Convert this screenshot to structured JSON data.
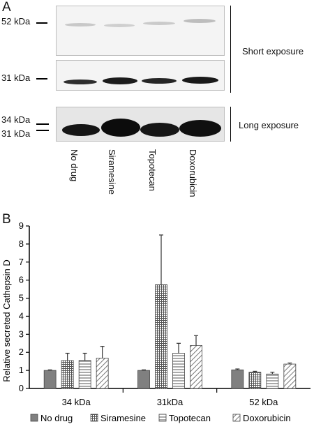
{
  "panel_a": {
    "letter": "A",
    "marker_52": "52 kDa",
    "marker_31": "31 kDa",
    "marker_34_long": "34 kDa",
    "marker_31_long": "31 kDa",
    "short_exposure": "Short exposure",
    "long_exposure": "Long exposure",
    "lanes": [
      "No drug",
      "Siramesine",
      "Topotecan",
      "Doxorubicin"
    ]
  },
  "panel_b": {
    "letter": "B"
  },
  "chart_data": {
    "type": "bar",
    "title": "",
    "xlabel": "",
    "ylabel": "Relative secreted Cathepsin D",
    "ylim": [
      0,
      9
    ],
    "yticks": [
      0,
      1,
      2,
      3,
      4,
      5,
      6,
      7,
      8,
      9
    ],
    "categories": [
      "34 kDa",
      "31kDa",
      "52 kDa"
    ],
    "legend_position": "bottom",
    "series": [
      {
        "name": "No drug",
        "values": [
          1.0,
          1.0,
          1.03
        ],
        "errors": [
          0.03,
          0.03,
          0.05
        ],
        "pattern": "solid",
        "color": "#808080"
      },
      {
        "name": "Siramesine",
        "values": [
          1.55,
          5.75,
          0.9
        ],
        "errors": [
          0.4,
          2.75,
          0.05
        ],
        "pattern": "grid",
        "color": "#555555"
      },
      {
        "name": "Topotecan",
        "values": [
          1.55,
          1.95,
          0.8
        ],
        "errors": [
          0.4,
          0.55,
          0.1
        ],
        "pattern": "horizontal",
        "color": "#555555"
      },
      {
        "name": "Doxorubicin",
        "values": [
          1.68,
          2.38,
          1.35
        ],
        "errors": [
          0.65,
          0.55,
          0.06
        ],
        "pattern": "diagonal",
        "color": "#555555"
      }
    ]
  }
}
